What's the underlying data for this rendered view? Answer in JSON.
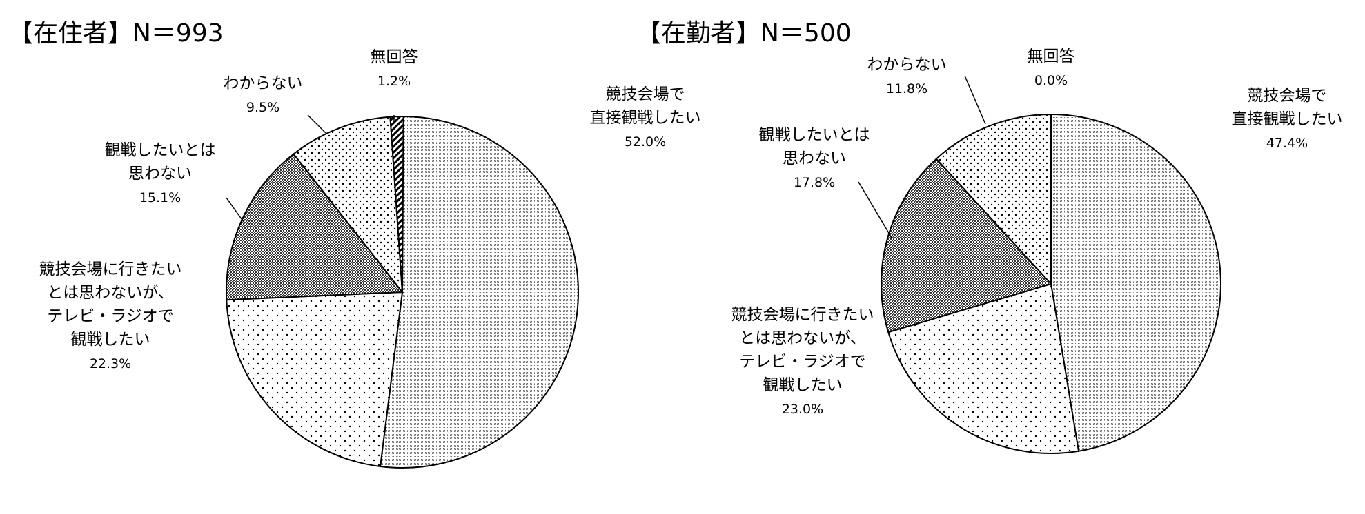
{
  "chart_data": [
    {
      "type": "pie",
      "title": "【在住者】N＝993",
      "slices": [
        {
          "label": "競技会場で\n直接観戦したい",
          "value": 52.0,
          "value_label": "52.0%",
          "pattern": "fine-gray"
        },
        {
          "label": "競技会場に行きたい\nとは思わないが、\nテレビ・ラジオで\n観戦したい",
          "value": 22.3,
          "value_label": "22.3%",
          "pattern": "sparse-dots"
        },
        {
          "label": "観戦したいとは\n思わない",
          "value": 15.1,
          "value_label": "15.1%",
          "pattern": "crosshatch"
        },
        {
          "label": "わからない",
          "value": 9.5,
          "value_label": "9.5%",
          "pattern": "dense-dots"
        },
        {
          "label": "無回答",
          "value": 1.2,
          "value_label": "1.2%",
          "pattern": "diagonal-stripes"
        }
      ]
    },
    {
      "type": "pie",
      "title": "【在勤者】N＝500",
      "slices": [
        {
          "label": "競技会場で\n直接観戦したい",
          "value": 47.4,
          "value_label": "47.4%",
          "pattern": "fine-gray"
        },
        {
          "label": "競技会場に行きたい\nとは思わないが、\nテレビ・ラジオで\n観戦したい",
          "value": 23.0,
          "value_label": "23.0%",
          "pattern": "sparse-dots"
        },
        {
          "label": "観戦したいとは\n思わない",
          "value": 17.8,
          "value_label": "17.8%",
          "pattern": "crosshatch"
        },
        {
          "label": "わからない",
          "value": 11.8,
          "value_label": "11.8%",
          "pattern": "dense-dots"
        },
        {
          "label": "無回答",
          "value": 0.0,
          "value_label": "0.0%",
          "pattern": "diagonal-stripes"
        }
      ]
    }
  ]
}
